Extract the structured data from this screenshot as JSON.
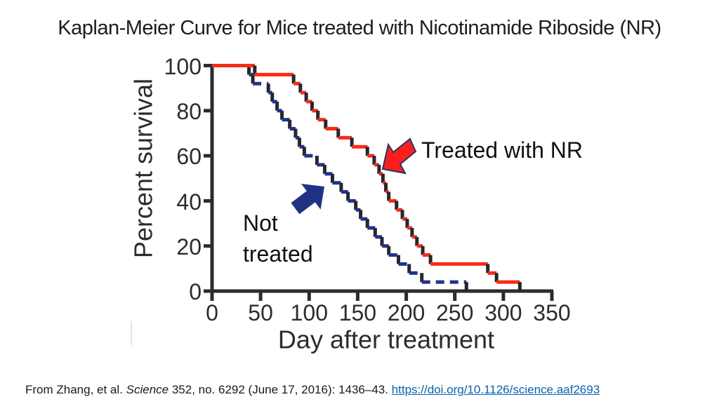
{
  "slide": {
    "title": "Kaplan-Meier Curve for Mice treated with Nicotinamide Riboside (NR)"
  },
  "annotations": {
    "treated_label": "Treated with NR",
    "not_treated_line1": "Not",
    "not_treated_line2": "treated"
  },
  "citation": {
    "prefix": "From Zhang, et al. ",
    "journal": "Science",
    "middle": " 352, no. 6292 (June 17, 2016): 1436–43. ",
    "link": "https://doi.org/10.1126/science.aaf2693"
  },
  "colors": {
    "treated": "#fb2a15",
    "not_treated": "#1e3390",
    "step_dark": "#26262e",
    "axis": "#2b2c31",
    "link": "#0563c1",
    "arrow_red": "#fc1d1d",
    "arrow_red_outline": "#1f3864",
    "arrow_blue": "#1f3285"
  },
  "chart_data": {
    "type": "line",
    "subtype": "kaplan-meier-step-survival",
    "title": "Kaplan-Meier Curve for Mice treated with Nicotinamide Riboside (NR)",
    "xlabel": "Day after treatment",
    "ylabel": "Percent survival",
    "xlim": [
      0,
      350
    ],
    "ylim": [
      0,
      100
    ],
    "xticks": [
      0,
      50,
      100,
      150,
      200,
      250,
      300,
      350
    ],
    "yticks": [
      0,
      20,
      40,
      60,
      80,
      100
    ],
    "grid": false,
    "legend_position": "annotated-arrows",
    "series": [
      {
        "name": "Treated with NR",
        "color": "#fb2a15",
        "style": "solid-step",
        "points": [
          [
            0,
            100
          ],
          [
            44,
            96
          ],
          [
            84,
            92
          ],
          [
            91,
            88
          ],
          [
            97,
            84
          ],
          [
            103,
            80
          ],
          [
            109,
            76
          ],
          [
            117,
            72
          ],
          [
            130,
            68
          ],
          [
            144,
            64
          ],
          [
            160,
            60
          ],
          [
            167,
            56
          ],
          [
            172,
            52
          ],
          [
            176,
            48
          ],
          [
            179,
            44
          ],
          [
            182,
            40
          ],
          [
            190,
            36
          ],
          [
            196,
            32
          ],
          [
            201,
            28
          ],
          [
            206,
            24
          ],
          [
            211,
            20
          ],
          [
            217,
            16
          ],
          [
            225,
            12
          ],
          [
            284,
            8
          ],
          [
            293,
            4
          ],
          [
            317,
            0
          ]
        ]
      },
      {
        "name": "Not treated",
        "color": "#1e3390",
        "style": "dashed-step",
        "points": [
          [
            0,
            100
          ],
          [
            38,
            96
          ],
          [
            42,
            92
          ],
          [
            58,
            88
          ],
          [
            62,
            84
          ],
          [
            67,
            80
          ],
          [
            72,
            76
          ],
          [
            80,
            72
          ],
          [
            86,
            68
          ],
          [
            90,
            64
          ],
          [
            95,
            60
          ],
          [
            108,
            56
          ],
          [
            116,
            52
          ],
          [
            124,
            48
          ],
          [
            133,
            44
          ],
          [
            140,
            40
          ],
          [
            148,
            36
          ],
          [
            153,
            32
          ],
          [
            160,
            28
          ],
          [
            168,
            24
          ],
          [
            175,
            20
          ],
          [
            182,
            16
          ],
          [
            192,
            12
          ],
          [
            203,
            8
          ],
          [
            216,
            4
          ],
          [
            262,
            0
          ]
        ]
      }
    ]
  }
}
